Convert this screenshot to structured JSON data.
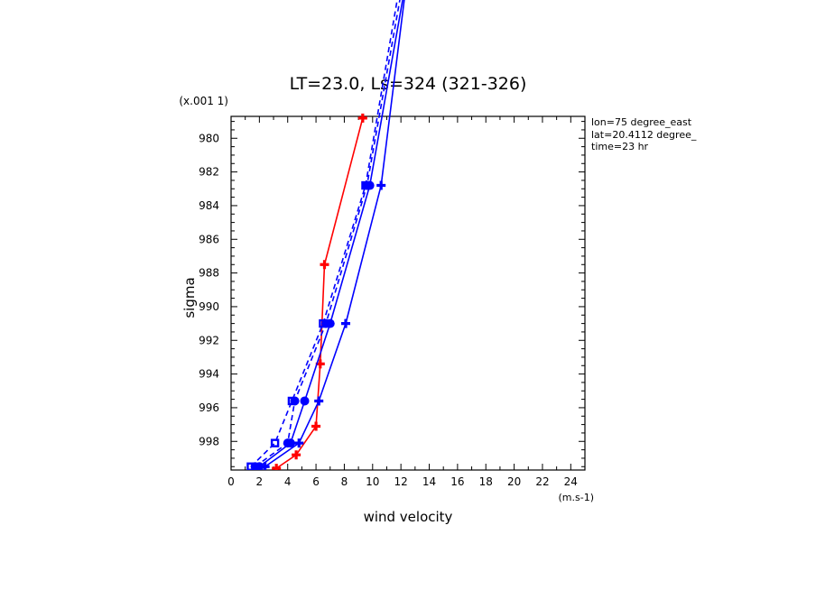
{
  "chart_data": {
    "type": "line",
    "title": "LT=23.0, Ls=324 (321-326)",
    "xlabel": "wind velocity",
    "ylabel": "sigma",
    "x_unit": "(m.s-1)",
    "y_unit": "(x.001 1)",
    "xlim": [
      0,
      25
    ],
    "ylim": [
      999.7,
      978.7
    ],
    "x_ticks": [
      0,
      2,
      4,
      6,
      8,
      10,
      12,
      14,
      16,
      18,
      20,
      22,
      24
    ],
    "y_ticks": [
      980,
      982,
      984,
      986,
      988,
      990,
      992,
      994,
      996,
      998
    ],
    "info_lines": [
      "lon=75 degree_east",
      "lat=20.4112 degree_",
      "time=23 hr"
    ],
    "grid": false,
    "series": [
      {
        "color": "#ff0000",
        "dash": "solid",
        "marker": "plus",
        "points": [
          [
            3.2,
            999.6
          ],
          [
            4.6,
            998.8
          ],
          [
            6.0,
            997.1
          ],
          [
            6.3,
            993.4
          ],
          [
            6.6,
            987.5
          ],
          [
            9.3,
            978.8
          ]
        ]
      },
      {
        "color": "#0000ff",
        "dash": "solid",
        "marker": "plus",
        "points": [
          [
            2.4,
            999.5
          ],
          [
            4.8,
            998.1
          ],
          [
            6.2,
            995.6
          ],
          [
            8.1,
            991.0
          ],
          [
            10.6,
            982.8
          ],
          [
            12.5,
            970.0
          ]
        ]
      },
      {
        "color": "#0000ff",
        "dash": "solid",
        "marker": "circle",
        "points": [
          [
            2.0,
            999.5
          ],
          [
            4.2,
            998.1
          ],
          [
            5.2,
            995.6
          ],
          [
            7.0,
            991.0
          ],
          [
            9.8,
            982.8
          ],
          [
            12.5,
            970.0
          ]
        ]
      },
      {
        "color": "#0000ff",
        "dash": "dashed",
        "marker": "circle",
        "points": [
          [
            1.7,
            999.5
          ],
          [
            4.0,
            998.1
          ],
          [
            4.5,
            995.6
          ],
          [
            6.7,
            991.0
          ],
          [
            9.6,
            982.8
          ],
          [
            12.3,
            970.0
          ]
        ]
      },
      {
        "color": "#0000ff",
        "dash": "dashed",
        "marker": "square",
        "points": [
          [
            1.4,
            999.5
          ],
          [
            3.1,
            998.1
          ],
          [
            4.3,
            995.6
          ],
          [
            6.5,
            991.0
          ],
          [
            9.5,
            982.8
          ],
          [
            12.1,
            970.0
          ]
        ]
      }
    ]
  }
}
